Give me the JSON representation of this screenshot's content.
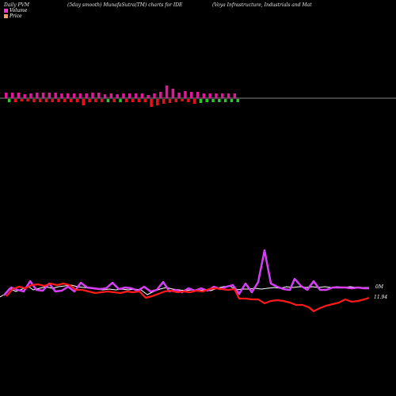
{
  "header": {
    "left": "Daily PVM",
    "middle": "(5day smooth) MunafaSutra(TM) charts for IDE",
    "right": "(Voya  Infrastructure,  Industrials and Mat"
  },
  "legend": [
    {
      "label": "Volume",
      "color": "#ff33cc"
    },
    {
      "label": "Price",
      "color": "#ff9966"
    }
  ],
  "colors": {
    "up": "#e0189a",
    "down_red": "#e8101a",
    "down_green": "#28c828",
    "volume_line": "#b040ff",
    "volume_line_outer": "#ff40ff",
    "price_line": "#ff1a1a",
    "white_line": "#ffffff"
  },
  "chart_data": {
    "type": "line",
    "volume_label": "0M",
    "price_label": "11.94",
    "bars": [
      {
        "dir": "up",
        "h": 7,
        "c": "up"
      },
      {
        "dir": "down",
        "h": 4,
        "c": "down_green"
      },
      {
        "dir": "up",
        "h": 7,
        "c": "up"
      },
      {
        "dir": "down",
        "h": 4,
        "c": "down_red"
      },
      {
        "dir": "up",
        "h": 7,
        "c": "up"
      },
      {
        "dir": "down",
        "h": 3,
        "c": "down_red"
      },
      {
        "dir": "up",
        "h": 5,
        "c": "up"
      },
      {
        "dir": "down",
        "h": 3,
        "c": "down_red"
      },
      {
        "dir": "up",
        "h": 6,
        "c": "up"
      },
      {
        "dir": "down",
        "h": 4,
        "c": "down_red"
      },
      {
        "dir": "up",
        "h": 7,
        "c": "up"
      },
      {
        "dir": "down",
        "h": 4,
        "c": "down_red"
      },
      {
        "dir": "up",
        "h": 7,
        "c": "up"
      },
      {
        "dir": "down",
        "h": 4,
        "c": "down_red"
      },
      {
        "dir": "up",
        "h": 7,
        "c": "up"
      },
      {
        "dir": "down",
        "h": 4,
        "c": "down_red"
      },
      {
        "dir": "up",
        "h": 7,
        "c": "up"
      },
      {
        "dir": "down",
        "h": 4,
        "c": "down_red"
      },
      {
        "dir": "up",
        "h": 6,
        "c": "up"
      },
      {
        "dir": "down",
        "h": 4,
        "c": "down_red"
      },
      {
        "dir": "up",
        "h": 6,
        "c": "up"
      },
      {
        "dir": "down",
        "h": 4,
        "c": "down_red"
      },
      {
        "dir": "up",
        "h": 6,
        "c": "up"
      },
      {
        "dir": "down",
        "h": 4,
        "c": "down_red"
      },
      {
        "dir": "up",
        "h": 6,
        "c": "up"
      },
      {
        "dir": "down",
        "h": 8,
        "c": "down_red"
      },
      {
        "dir": "up",
        "h": 6,
        "c": "up"
      },
      {
        "dir": "down",
        "h": 4,
        "c": "down_red"
      },
      {
        "dir": "up",
        "h": 7,
        "c": "up"
      },
      {
        "dir": "down",
        "h": 4,
        "c": "down_red"
      },
      {
        "dir": "up",
        "h": 7,
        "c": "up"
      },
      {
        "dir": "down",
        "h": 4,
        "c": "down_red"
      },
      {
        "dir": "up",
        "h": 5,
        "c": "up"
      },
      {
        "dir": "down",
        "h": 4,
        "c": "down_green"
      },
      {
        "dir": "up",
        "h": 6,
        "c": "up"
      },
      {
        "dir": "down",
        "h": 4,
        "c": "down_red"
      },
      {
        "dir": "up",
        "h": 5,
        "c": "up"
      },
      {
        "dir": "down",
        "h": 4,
        "c": "down_green"
      },
      {
        "dir": "up",
        "h": 6,
        "c": "up"
      },
      {
        "dir": "down",
        "h": 4,
        "c": "down_red"
      },
      {
        "dir": "up",
        "h": 6,
        "c": "up"
      },
      {
        "dir": "down",
        "h": 4,
        "c": "down_red"
      },
      {
        "dir": "up",
        "h": 6,
        "c": "up"
      },
      {
        "dir": "down",
        "h": 4,
        "c": "down_red"
      },
      {
        "dir": "up",
        "h": 6,
        "c": "up"
      },
      {
        "dir": "down",
        "h": 4,
        "c": "down_red"
      },
      {
        "dir": "up",
        "h": 4,
        "c": "up"
      },
      {
        "dir": "down",
        "h": 10,
        "c": "down_red"
      },
      {
        "dir": "up",
        "h": 6,
        "c": "up"
      },
      {
        "dir": "down",
        "h": 8,
        "c": "down_red"
      },
      {
        "dir": "up",
        "h": 8,
        "c": "up"
      },
      {
        "dir": "down",
        "h": 6,
        "c": "down_red"
      },
      {
        "dir": "up",
        "h": 16,
        "c": "up"
      },
      {
        "dir": "down",
        "h": 5,
        "c": "down_red"
      },
      {
        "dir": "up",
        "h": 12,
        "c": "up"
      },
      {
        "dir": "down",
        "h": 4,
        "c": "down_red"
      },
      {
        "dir": "up",
        "h": 7,
        "c": "up"
      },
      {
        "dir": "down",
        "h": 3,
        "c": "down_red"
      },
      {
        "dir": "up",
        "h": 9,
        "c": "up"
      },
      {
        "dir": "down",
        "h": 4,
        "c": "down_red"
      },
      {
        "dir": "up",
        "h": 8,
        "c": "up"
      },
      {
        "dir": "down",
        "h": 6,
        "c": "down_red"
      },
      {
        "dir": "up",
        "h": 8,
        "c": "up"
      },
      {
        "dir": "down",
        "h": 5,
        "c": "down_green"
      },
      {
        "dir": "up",
        "h": 6,
        "c": "up"
      },
      {
        "dir": "down",
        "h": 4,
        "c": "down_green"
      },
      {
        "dir": "up",
        "h": 6,
        "c": "up"
      },
      {
        "dir": "down",
        "h": 4,
        "c": "down_green"
      },
      {
        "dir": "up",
        "h": 6,
        "c": "up"
      },
      {
        "dir": "down",
        "h": 4,
        "c": "down_green"
      },
      {
        "dir": "up",
        "h": 6,
        "c": "up"
      },
      {
        "dir": "down",
        "h": 4,
        "c": "down_green"
      },
      {
        "dir": "up",
        "h": 6,
        "c": "up"
      },
      {
        "dir": "down",
        "h": 4,
        "c": "down_green"
      },
      {
        "dir": "up",
        "h": 6,
        "c": "up"
      },
      {
        "dir": "down",
        "h": 4,
        "c": "down_green"
      }
    ],
    "volume_line": [
      [
        0,
        375
      ],
      [
        5,
        372
      ],
      [
        12,
        364
      ],
      [
        20,
        368
      ],
      [
        28,
        365
      ],
      [
        36,
        362
      ],
      [
        42,
        366
      ],
      [
        50,
        364
      ],
      [
        58,
        362
      ],
      [
        66,
        364
      ],
      [
        74,
        362
      ],
      [
        82,
        361
      ],
      [
        90,
        360
      ],
      [
        98,
        362
      ],
      [
        106,
        363
      ],
      [
        114,
        364
      ],
      [
        122,
        365
      ],
      [
        130,
        366
      ],
      [
        138,
        365
      ],
      [
        146,
        366
      ],
      [
        154,
        365
      ],
      [
        162,
        366
      ],
      [
        170,
        365
      ],
      [
        178,
        366
      ],
      [
        186,
        372
      ],
      [
        194,
        368
      ],
      [
        202,
        365
      ],
      [
        210,
        363
      ],
      [
        218,
        365
      ],
      [
        226,
        366
      ],
      [
        234,
        367
      ],
      [
        242,
        366
      ],
      [
        250,
        367
      ],
      [
        258,
        366
      ],
      [
        266,
        367
      ],
      [
        274,
        364
      ],
      [
        282,
        362
      ],
      [
        290,
        361
      ],
      [
        298,
        366
      ],
      [
        306,
        365
      ],
      [
        314,
        365
      ],
      [
        322,
        364
      ],
      [
        330,
        365
      ],
      [
        338,
        364
      ],
      [
        346,
        363
      ],
      [
        354,
        364
      ],
      [
        362,
        362
      ],
      [
        370,
        363
      ],
      [
        378,
        362
      ],
      [
        386,
        363
      ],
      [
        394,
        362
      ],
      [
        402,
        363
      ],
      [
        410,
        362
      ],
      [
        418,
        363
      ],
      [
        426,
        362
      ],
      [
        434,
        363
      ],
      [
        442,
        362
      ],
      [
        450,
        363
      ],
      [
        458,
        363
      ],
      [
        466,
        363
      ]
    ],
    "volume_line2": [
      [
        5,
        373
      ],
      [
        14,
        363
      ],
      [
        22,
        366
      ],
      [
        30,
        368
      ],
      [
        38,
        355
      ],
      [
        46,
        366
      ],
      [
        54,
        367
      ],
      [
        62,
        358
      ],
      [
        70,
        368
      ],
      [
        78,
        367
      ],
      [
        86,
        362
      ],
      [
        94,
        368
      ],
      [
        102,
        357
      ],
      [
        110,
        363
      ],
      [
        118,
        364
      ],
      [
        126,
        365
      ],
      [
        134,
        364
      ],
      [
        142,
        357
      ],
      [
        150,
        365
      ],
      [
        158,
        363
      ],
      [
        166,
        364
      ],
      [
        174,
        367
      ],
      [
        182,
        362
      ],
      [
        190,
        368
      ],
      [
        198,
        366
      ],
      [
        206,
        356
      ],
      [
        214,
        368
      ],
      [
        222,
        366
      ],
      [
        230,
        369
      ],
      [
        238,
        364
      ],
      [
        246,
        367
      ],
      [
        254,
        364
      ],
      [
        262,
        367
      ],
      [
        270,
        362
      ],
      [
        278,
        365
      ],
      [
        286,
        362
      ],
      [
        294,
        360
      ],
      [
        302,
        371
      ],
      [
        310,
        358
      ],
      [
        318,
        369
      ],
      [
        326,
        356
      ],
      [
        334,
        316
      ],
      [
        342,
        358
      ],
      [
        350,
        362
      ],
      [
        358,
        365
      ],
      [
        366,
        366
      ],
      [
        372,
        352
      ],
      [
        380,
        361
      ],
      [
        388,
        366
      ],
      [
        396,
        355
      ],
      [
        404,
        366
      ],
      [
        412,
        366
      ],
      [
        420,
        363
      ],
      [
        428,
        363
      ],
      [
        436,
        363
      ],
      [
        444,
        364
      ],
      [
        452,
        363
      ],
      [
        460,
        364
      ],
      [
        466,
        364
      ]
    ],
    "price_line": [
      [
        8,
        374
      ],
      [
        16,
        365
      ],
      [
        24,
        362
      ],
      [
        32,
        364
      ],
      [
        40,
        360
      ],
      [
        48,
        359
      ],
      [
        56,
        361
      ],
      [
        64,
        358
      ],
      [
        72,
        360
      ],
      [
        80,
        358
      ],
      [
        88,
        360
      ],
      [
        96,
        366
      ],
      [
        104,
        366
      ],
      [
        112,
        368
      ],
      [
        120,
        370
      ],
      [
        128,
        369
      ],
      [
        136,
        368
      ],
      [
        144,
        369
      ],
      [
        152,
        370
      ],
      [
        160,
        368
      ],
      [
        168,
        369
      ],
      [
        176,
        368
      ],
      [
        184,
        376
      ],
      [
        192,
        374
      ],
      [
        200,
        371
      ],
      [
        208,
        368
      ],
      [
        216,
        367
      ],
      [
        224,
        369
      ],
      [
        232,
        368
      ],
      [
        240,
        369
      ],
      [
        248,
        367
      ],
      [
        256,
        368
      ],
      [
        264,
        365
      ],
      [
        272,
        364
      ],
      [
        280,
        365
      ],
      [
        288,
        366
      ],
      [
        296,
        365
      ],
      [
        302,
        377
      ],
      [
        310,
        377
      ],
      [
        318,
        378
      ],
      [
        326,
        378
      ],
      [
        334,
        383
      ],
      [
        342,
        380
      ],
      [
        350,
        379
      ],
      [
        358,
        380
      ],
      [
        366,
        382
      ],
      [
        374,
        385
      ],
      [
        382,
        385
      ],
      [
        390,
        388
      ],
      [
        396,
        393
      ],
      [
        404,
        389
      ],
      [
        412,
        386
      ],
      [
        420,
        384
      ],
      [
        428,
        382
      ],
      [
        436,
        378
      ],
      [
        444,
        381
      ],
      [
        452,
        380
      ],
      [
        460,
        378
      ],
      [
        466,
        376
      ]
    ]
  }
}
